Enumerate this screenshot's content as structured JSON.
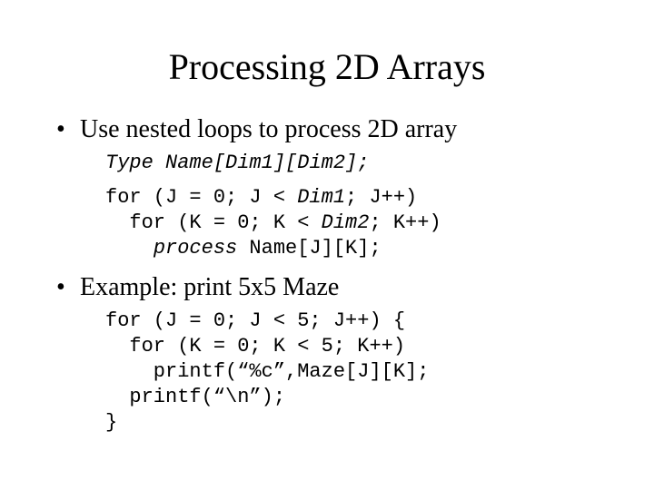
{
  "title": "Processing 2D Arrays",
  "bullets": {
    "b1": "Use nested loops to process 2D array",
    "b2": "Example: print 5x5 Maze"
  },
  "code": {
    "decl_plain1": "Type Name",
    "decl_italic1": "[Dim1][Dim2]",
    "decl_plain2": ";",
    "loop1_l1a": "for (J = 0; J < ",
    "loop1_l1b": "Dim1",
    "loop1_l1c": "; J++)",
    "loop1_l2a": "  for (K = 0; K < ",
    "loop1_l2b": "Dim2",
    "loop1_l2c": "; K++)",
    "loop1_l3a": "    ",
    "loop1_l3b": "process",
    "loop1_l3c": " Name[J][K];",
    "loop2_l1": "for (J = 0; J < 5; J++) {",
    "loop2_l2": "  for (K = 0; K < 5; K++)",
    "loop2_l3": "    printf(“%c”,Maze[J][K];",
    "loop2_l4": "  printf(“\\n”);",
    "loop2_l5": "}"
  },
  "colors": {
    "background": "#ffffff",
    "text": "#000000"
  },
  "fonts": {
    "title_size_pt": 40,
    "bullet_size_pt": 28,
    "code_size_pt": 22,
    "body_family": "Times New Roman",
    "code_family": "Courier New"
  }
}
